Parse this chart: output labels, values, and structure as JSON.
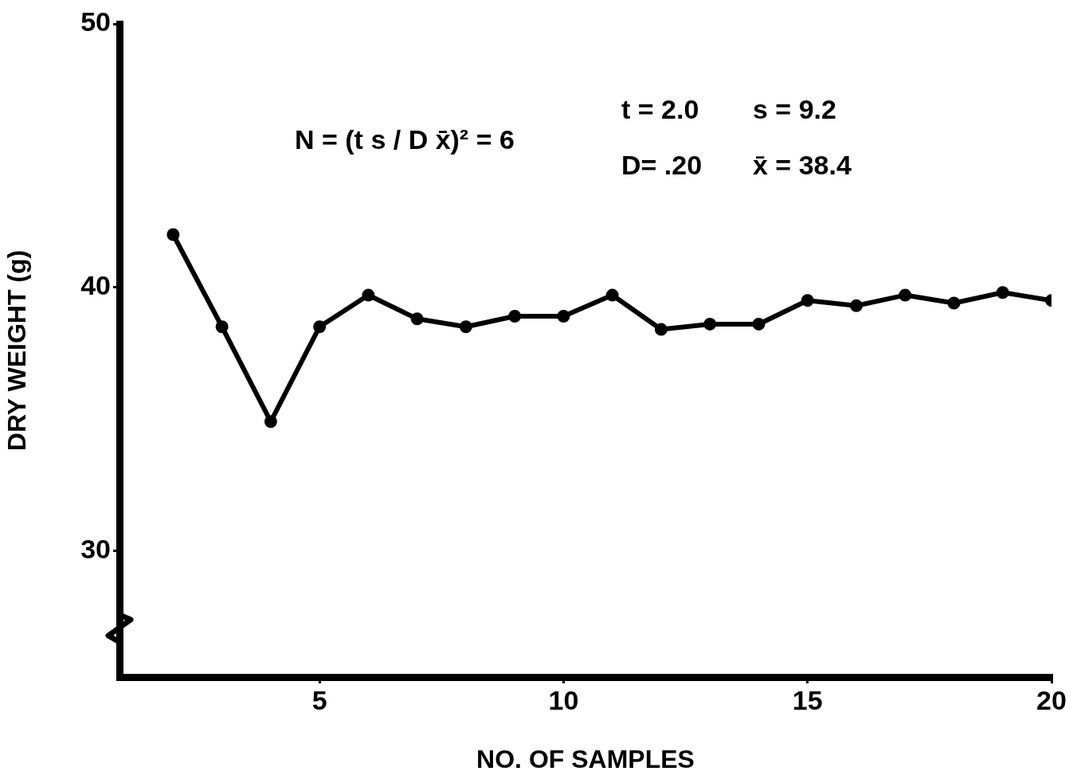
{
  "chart_data": {
    "type": "line",
    "xlabel": "NO. OF SAMPLES",
    "ylabel": "DRY WEIGHT (g)",
    "x": [
      2,
      3,
      4,
      5,
      6,
      7,
      8,
      9,
      10,
      11,
      12,
      13,
      14,
      15,
      16,
      17,
      18,
      19,
      20
    ],
    "values": [
      42.0,
      38.5,
      34.9,
      38.5,
      39.7,
      38.8,
      38.5,
      38.9,
      38.9,
      39.7,
      38.4,
      38.6,
      38.6,
      39.5,
      39.3,
      39.7,
      39.4,
      39.8,
      39.5
    ],
    "color": "#000000",
    "marker": "circle",
    "line_style": "solid",
    "grid": false,
    "legend": false,
    "xlim": [
      0.9,
      20
    ],
    "xticks": [
      5,
      10,
      15,
      20
    ],
    "ylim": [
      25.2,
      50
    ],
    "yticks": [
      30,
      40,
      50
    ],
    "annotations": [
      "N = (t s / D x̄)² = 6",
      "t = 2.0",
      "s = 9.2",
      "D= .20",
      "x̄ = 38.4"
    ]
  }
}
